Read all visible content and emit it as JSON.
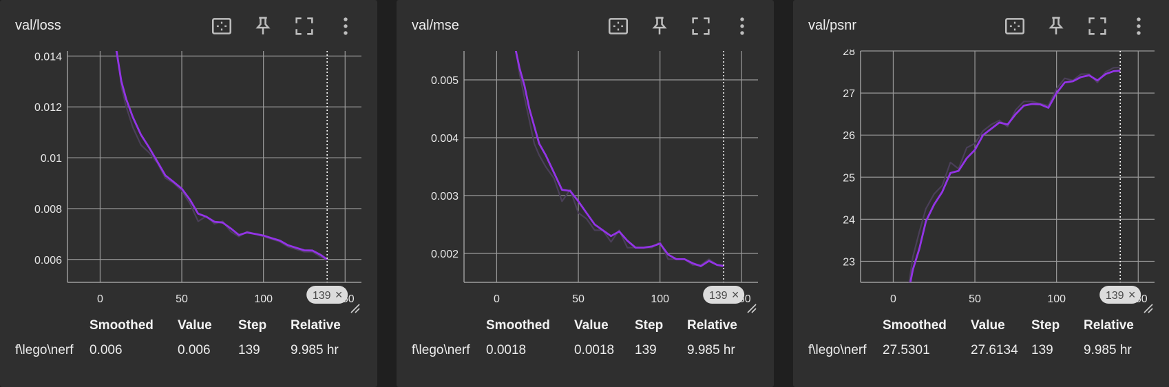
{
  "icons": {
    "fit": "fit-domain-icon",
    "pin": "pin-icon",
    "fullscreen": "fullscreen-icon",
    "more": "more-vert-icon"
  },
  "colors": {
    "smoothed": "#9334e6",
    "raw": "#4a3f58",
    "grid": "#9a9a9a"
  },
  "table_headers": {
    "smoothed": "Smoothed",
    "value": "Value",
    "step": "Step",
    "relative": "Relative"
  },
  "cards": [
    {
      "title": "val/loss",
      "run": "f\\lego\\nerf",
      "smoothed": "0.006",
      "value": "0.006",
      "step": "139",
      "relative": "9.985 hr",
      "hover_step_label": "139",
      "close_glyph": "×"
    },
    {
      "title": "val/mse",
      "run": "f\\lego\\nerf",
      "smoothed": "0.0018",
      "value": "0.0018",
      "step": "139",
      "relative": "9.985 hr",
      "hover_step_label": "139",
      "close_glyph": "×"
    },
    {
      "title": "val/psnr",
      "run": "f\\lego\\nerf",
      "smoothed": "27.5301",
      "value": "27.6134",
      "step": "139",
      "relative": "9.985 hr",
      "hover_step_label": "139",
      "close_glyph": "×"
    }
  ],
  "chart_data": [
    {
      "type": "line",
      "xlim": [
        -20,
        160
      ],
      "ylim": [
        0.0051,
        0.0142
      ],
      "xticks": [
        0,
        50,
        100,
        150
      ],
      "xtick_labels": [
        "0",
        "50",
        "100",
        "150"
      ],
      "yticks": [
        0.006,
        0.008,
        0.01,
        0.012,
        0.014
      ],
      "ytick_labels": [
        "0.006",
        "0.008",
        "0.01",
        "0.012",
        "0.014"
      ],
      "hover_step": 139,
      "x": [
        8,
        10,
        13,
        16,
        20,
        25,
        30,
        35,
        40,
        45,
        50,
        55,
        60,
        65,
        70,
        75,
        80,
        85,
        90,
        95,
        100,
        105,
        110,
        115,
        120,
        125,
        130,
        135,
        139
      ],
      "series": [
        {
          "role": "smoothed",
          "values": [
            0.0146,
            0.0142,
            0.013,
            0.0123,
            0.0116,
            0.0109,
            0.0104,
            0.00985,
            0.0093,
            0.00905,
            0.00878,
            0.00835,
            0.0078,
            0.00768,
            0.00748,
            0.00745,
            0.00722,
            0.00696,
            0.00706,
            0.007,
            0.00694,
            0.00684,
            0.00674,
            0.00656,
            0.00646,
            0.00636,
            0.00635,
            0.00618,
            0.006
          ]
        },
        {
          "role": "raw",
          "values": [
            0.0148,
            0.0144,
            0.0128,
            0.012,
            0.0112,
            0.0105,
            0.0102,
            0.0098,
            0.0092,
            0.009,
            0.0087,
            0.0082,
            0.0075,
            0.0077,
            0.0074,
            0.0075,
            0.0071,
            0.0069,
            0.0071,
            0.007,
            0.0069,
            0.0068,
            0.0067,
            0.0065,
            0.0064,
            0.0063,
            0.0063,
            0.0061,
            0.006
          ]
        }
      ]
    },
    {
      "type": "line",
      "xlim": [
        -20,
        160
      ],
      "ylim": [
        0.0015,
        0.0055
      ],
      "xticks": [
        0,
        50,
        100,
        150
      ],
      "xtick_labels": [
        "0",
        "50",
        "100",
        "150"
      ],
      "yticks": [
        0.002,
        0.003,
        0.004,
        0.005
      ],
      "ytick_labels": [
        "0.002",
        "0.003",
        "0.004",
        "0.005"
      ],
      "hover_step": 139,
      "x": [
        11,
        14,
        17,
        20,
        23,
        26,
        30,
        35,
        40,
        45,
        50,
        55,
        60,
        65,
        70,
        75,
        80,
        85,
        90,
        95,
        100,
        105,
        110,
        115,
        120,
        125,
        130,
        135,
        139
      ],
      "series": [
        {
          "role": "smoothed",
          "values": [
            0.0056,
            0.0052,
            0.0049,
            0.0045,
            0.0042,
            0.0039,
            0.0037,
            0.0034,
            0.0031,
            0.00308,
            0.0029,
            0.0027,
            0.0025,
            0.0024,
            0.0023,
            0.00238,
            0.00222,
            0.0021,
            0.0021,
            0.00212,
            0.00217,
            0.00198,
            0.0019,
            0.0019,
            0.00183,
            0.00178,
            0.00187,
            0.0018,
            0.00178
          ]
        },
        {
          "role": "raw",
          "values": [
            0.0057,
            0.0051,
            0.0047,
            0.0043,
            0.0039,
            0.0037,
            0.0035,
            0.0033,
            0.0029,
            0.0031,
            0.0027,
            0.0026,
            0.0024,
            0.0024,
            0.0022,
            0.0024,
            0.0021,
            0.0021,
            0.0021,
            0.0021,
            0.0022,
            0.0019,
            0.0019,
            0.0019,
            0.0018,
            0.0018,
            0.0019,
            0.0018,
            0.0018
          ]
        }
      ]
    },
    {
      "type": "line",
      "xlim": [
        -20,
        160
      ],
      "ylim": [
        22.5,
        28.0
      ],
      "xticks": [
        0,
        50,
        100,
        150
      ],
      "xtick_labels": [
        "0",
        "50",
        "100",
        "150"
      ],
      "yticks": [
        23,
        24,
        25,
        26,
        27,
        28
      ],
      "ytick_labels": [
        "23",
        "24",
        "25",
        "26",
        "27",
        "28"
      ],
      "hover_step": 139,
      "x": [
        9,
        12,
        16,
        20,
        25,
        30,
        35,
        40,
        45,
        50,
        55,
        60,
        65,
        70,
        75,
        80,
        85,
        90,
        95,
        100,
        105,
        110,
        115,
        120,
        125,
        130,
        135,
        139
      ],
      "series": [
        {
          "role": "smoothed",
          "values": [
            22.2,
            22.8,
            23.3,
            23.95,
            24.35,
            24.65,
            25.1,
            25.15,
            25.45,
            25.65,
            26.0,
            26.15,
            26.3,
            26.25,
            26.5,
            26.7,
            26.74,
            26.73,
            26.65,
            27.0,
            27.25,
            27.28,
            27.38,
            27.42,
            27.3,
            27.45,
            27.52,
            27.53
          ]
        },
        {
          "role": "raw",
          "values": [
            22.3,
            23.1,
            23.7,
            24.25,
            24.6,
            24.8,
            25.35,
            25.2,
            25.7,
            25.8,
            26.1,
            26.25,
            26.35,
            26.2,
            26.6,
            26.8,
            26.8,
            26.75,
            26.7,
            27.1,
            27.35,
            27.3,
            27.45,
            27.45,
            27.25,
            27.5,
            27.6,
            27.61
          ]
        }
      ]
    }
  ]
}
